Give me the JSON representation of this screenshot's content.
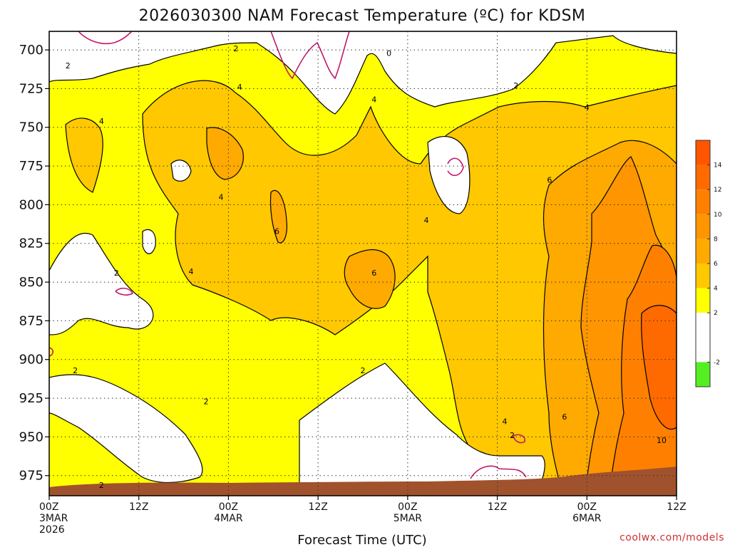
{
  "chart_data": {
    "type": "time-height contour",
    "title": "2026030300 NAM Forecast Temperature (ºC) for KDSM",
    "xlabel": "Forecast Time (UTC)",
    "credit": "coolwx.com/models",
    "y_axis": {
      "ticks": [
        "700",
        "725",
        "750",
        "775",
        "800",
        "825",
        "850",
        "875",
        "900",
        "925",
        "950",
        "975"
      ],
      "ylim": [
        988,
        688
      ],
      "inverted": true
    },
    "x_axis": {
      "ticks": [
        {
          "hour": 0,
          "lines": [
            "00Z",
            "3MAR",
            "2026"
          ]
        },
        {
          "hour": 12,
          "lines": [
            "12Z"
          ]
        },
        {
          "hour": 24,
          "lines": [
            "00Z",
            "4MAR"
          ]
        },
        {
          "hour": 36,
          "lines": [
            "12Z"
          ]
        },
        {
          "hour": 48,
          "lines": [
            "00Z",
            "5MAR"
          ]
        },
        {
          "hour": 60,
          "lines": [
            "12Z"
          ]
        },
        {
          "hour": 72,
          "lines": [
            "00Z",
            "6MAR"
          ]
        },
        {
          "hour": 84,
          "lines": [
            "12Z"
          ]
        }
      ],
      "xlim": [
        0,
        84
      ]
    },
    "grid": "dotted",
    "colorbar": {
      "placement": "right",
      "ticks": [
        "14",
        "12",
        "10",
        "8",
        "6",
        "4",
        "2",
        "-2"
      ],
      "colors": [
        "#ff5500",
        "#ff6a00",
        "#ff8000",
        "#ff9500",
        "#ffaa00",
        "#ffc800",
        "#ffff00",
        "#ffffff",
        "#55ee22"
      ],
      "bounds": [
        16,
        14,
        12,
        10,
        8,
        6,
        4,
        2,
        -2,
        -4
      ]
    },
    "fill_colors": {
      "below_0": "#ffffff",
      "from_0_to_2": "#ffffff",
      "from_2_to_4": "#ffff00",
      "from_4_to_6": "#ffc800",
      "from_6_to_8": "#ffaa00",
      "from_8_to_10": "#ff9500",
      "from_10_to_12": "#ff8000",
      "from_12_to_14": "#ff6a00",
      "terrain": "#a0522d",
      "zero_line": "#c0196b"
    },
    "contour_labels": [
      {
        "text": "2",
        "hour": 2.5,
        "p": 710
      },
      {
        "text": "2",
        "hour": 25,
        "p": 699
      },
      {
        "text": "0",
        "hour": 45.5,
        "p": 702
      },
      {
        "text": "4",
        "hour": 7,
        "p": 746
      },
      {
        "text": "4",
        "hour": 25.5,
        "p": 724
      },
      {
        "text": "4",
        "hour": 43.5,
        "p": 732
      },
      {
        "text": "2",
        "hour": 62.5,
        "p": 723
      },
      {
        "text": "4",
        "hour": 72,
        "p": 737
      },
      {
        "text": "6",
        "hour": 67,
        "p": 784
      },
      {
        "text": "4",
        "hour": 23,
        "p": 795
      },
      {
        "text": "6",
        "hour": 30.5,
        "p": 817
      },
      {
        "text": "4",
        "hour": 50.5,
        "p": 810
      },
      {
        "text": "4",
        "hour": 19,
        "p": 843
      },
      {
        "text": "6",
        "hour": 43.5,
        "p": 844
      },
      {
        "text": "2",
        "hour": 9,
        "p": 844
      },
      {
        "text": "2",
        "hour": 3.5,
        "p": 907
      },
      {
        "text": "2",
        "hour": 21,
        "p": 927
      },
      {
        "text": "2",
        "hour": 42,
        "p": 907
      },
      {
        "text": "4",
        "hour": 61,
        "p": 940
      },
      {
        "text": "6",
        "hour": 69,
        "p": 937
      },
      {
        "text": "2",
        "hour": 62,
        "p": 949
      },
      {
        "text": "10",
        "hour": 82,
        "p": 952
      },
      {
        "text": "2",
        "hour": 7,
        "p": 981
      }
    ]
  }
}
